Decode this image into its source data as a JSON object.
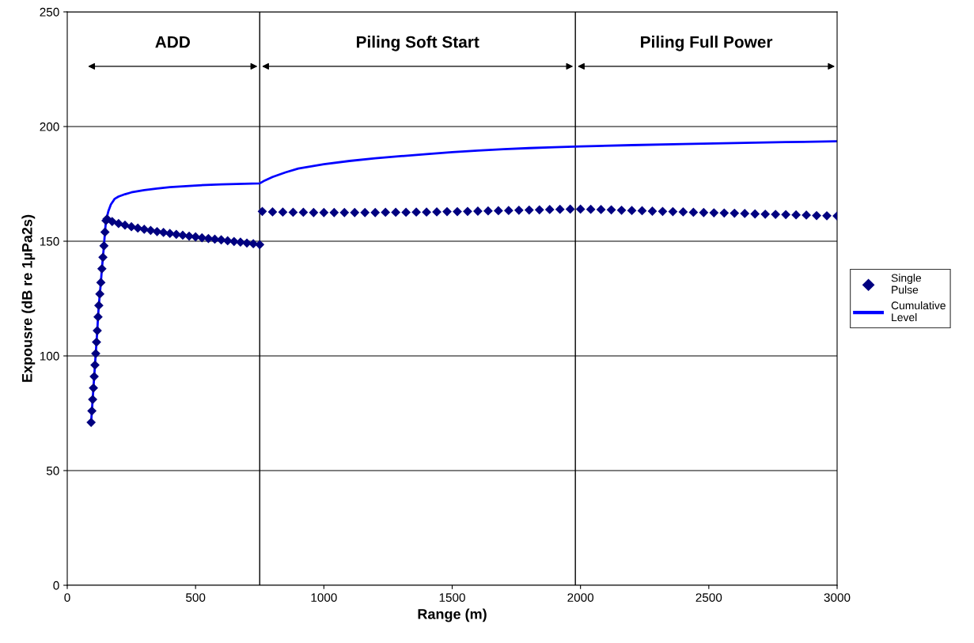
{
  "chart_data": {
    "type": "line",
    "xlabel": "Range (m)",
    "ylabel": "Expousre (dB re 1µPa2s)",
    "xlim": [
      0,
      3000
    ],
    "xticks": [
      0,
      500,
      1000,
      1500,
      2000,
      2500,
      3000
    ],
    "ylim": [
      0,
      250
    ],
    "yticks": [
      0,
      50,
      100,
      150,
      200,
      250
    ],
    "grid": "y",
    "legend": "right",
    "series": [
      {
        "name": "Single Pulse",
        "type": "scatter",
        "marker": "diamond",
        "color": "#000080",
        "x": [
          93,
          96,
          99,
          102,
          105,
          108,
          111,
          114,
          117,
          120,
          123,
          127,
          131,
          135,
          139,
          143,
          147,
          151,
          155,
          175,
          200,
          225,
          250,
          275,
          300,
          325,
          350,
          375,
          400,
          425,
          450,
          475,
          500,
          525,
          550,
          575,
          600,
          625,
          650,
          675,
          700,
          725,
          750,
          760,
          800,
          840,
          880,
          920,
          960,
          1000,
          1040,
          1080,
          1120,
          1160,
          1200,
          1240,
          1280,
          1320,
          1360,
          1400,
          1440,
          1480,
          1520,
          1560,
          1600,
          1640,
          1680,
          1720,
          1760,
          1800,
          1840,
          1880,
          1920,
          1960,
          2000,
          2040,
          2080,
          2120,
          2160,
          2200,
          2240,
          2280,
          2320,
          2360,
          2400,
          2440,
          2480,
          2520,
          2560,
          2600,
          2640,
          2680,
          2720,
          2760,
          2800,
          2840,
          2880,
          2920,
          2960,
          3000
        ],
        "values": [
          71,
          76,
          81,
          86,
          91,
          96,
          101,
          106,
          111,
          117,
          122,
          127,
          132,
          138,
          143,
          148,
          154,
          159,
          159.7,
          158.6,
          157.7,
          157.0,
          156.3,
          155.7,
          155.2,
          154.7,
          154.2,
          153.8,
          153.4,
          153.0,
          152.6,
          152.2,
          151.9,
          151.5,
          151.2,
          150.9,
          150.6,
          150.2,
          149.9,
          149.6,
          149.2,
          148.9,
          148.5,
          163.0,
          162.8,
          162.7,
          162.6,
          162.6,
          162.5,
          162.5,
          162.5,
          162.5,
          162.5,
          162.5,
          162.5,
          162.6,
          162.6,
          162.6,
          162.7,
          162.7,
          162.8,
          162.9,
          162.9,
          163.0,
          163.1,
          163.2,
          163.3,
          163.4,
          163.5,
          163.6,
          163.7,
          163.8,
          163.9,
          164.0,
          164.0,
          163.9,
          163.8,
          163.7,
          163.5,
          163.4,
          163.3,
          163.1,
          163.0,
          162.9,
          162.8,
          162.6,
          162.5,
          162.4,
          162.3,
          162.2,
          162.1,
          161.9,
          161.8,
          161.7,
          161.6,
          161.5,
          161.4,
          161.2,
          161.1,
          161.0
        ]
      },
      {
        "name": "Cumulative Level",
        "line_style": "solid",
        "color": "#0000ff",
        "x": [
          93,
          96,
          99,
          102,
          105,
          108,
          111,
          114,
          117,
          120,
          123,
          127,
          131,
          135,
          139,
          143,
          147,
          151,
          160,
          170,
          185,
          200,
          225,
          250,
          300,
          350,
          400,
          500,
          600,
          750,
          770,
          800,
          850,
          900,
          1000,
          1100,
          1200,
          1300,
          1400,
          1500,
          1600,
          1700,
          1800,
          1900,
          2000,
          2200,
          2400,
          2600,
          2800,
          3000
        ],
        "values": [
          71,
          76,
          81,
          86,
          91,
          96,
          101,
          106,
          111,
          117,
          122,
          127,
          132,
          138,
          143,
          148,
          154,
          159,
          163,
          166,
          168.5,
          169.5,
          170.5,
          171.3,
          172.3,
          173,
          173.6,
          174.3,
          174.8,
          175.2,
          176.5,
          178,
          180,
          181.7,
          183.6,
          185,
          186.2,
          187.1,
          188,
          188.8,
          189.5,
          190.1,
          190.6,
          191,
          191.3,
          191.9,
          192.4,
          192.8,
          193.2,
          193.6
        ]
      }
    ],
    "ref_lines": [
      {
        "axis": "x",
        "value": 750,
        "color": "#000000"
      },
      {
        "axis": "x",
        "value": 1980,
        "color": "#000000"
      }
    ],
    "annotations": [
      "ADD",
      "Piling Soft Start",
      "Piling Full Power"
    ]
  }
}
